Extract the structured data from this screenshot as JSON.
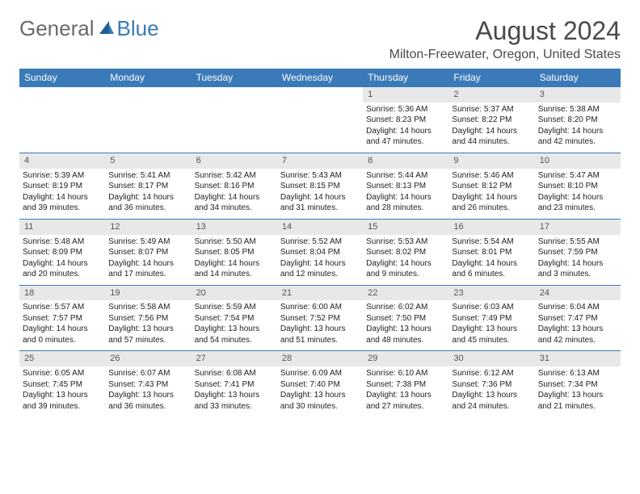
{
  "logo": {
    "text1": "General",
    "text2": "Blue"
  },
  "title": "August 2024",
  "location": "Milton-Freewater, Oregon, United States",
  "colors": {
    "header_bg": "#3a7ab8",
    "header_text": "#ffffff",
    "daynum_bg": "#e8e8e8",
    "border": "#3a7ab8"
  },
  "weekdays": [
    "Sunday",
    "Monday",
    "Tuesday",
    "Wednesday",
    "Thursday",
    "Friday",
    "Saturday"
  ],
  "weeks": [
    [
      {
        "n": "",
        "sunrise": "",
        "sunset": "",
        "daylight": ""
      },
      {
        "n": "",
        "sunrise": "",
        "sunset": "",
        "daylight": ""
      },
      {
        "n": "",
        "sunrise": "",
        "sunset": "",
        "daylight": ""
      },
      {
        "n": "",
        "sunrise": "",
        "sunset": "",
        "daylight": ""
      },
      {
        "n": "1",
        "sunrise": "Sunrise: 5:36 AM",
        "sunset": "Sunset: 8:23 PM",
        "daylight": "Daylight: 14 hours and 47 minutes."
      },
      {
        "n": "2",
        "sunrise": "Sunrise: 5:37 AM",
        "sunset": "Sunset: 8:22 PM",
        "daylight": "Daylight: 14 hours and 44 minutes."
      },
      {
        "n": "3",
        "sunrise": "Sunrise: 5:38 AM",
        "sunset": "Sunset: 8:20 PM",
        "daylight": "Daylight: 14 hours and 42 minutes."
      }
    ],
    [
      {
        "n": "4",
        "sunrise": "Sunrise: 5:39 AM",
        "sunset": "Sunset: 8:19 PM",
        "daylight": "Daylight: 14 hours and 39 minutes."
      },
      {
        "n": "5",
        "sunrise": "Sunrise: 5:41 AM",
        "sunset": "Sunset: 8:17 PM",
        "daylight": "Daylight: 14 hours and 36 minutes."
      },
      {
        "n": "6",
        "sunrise": "Sunrise: 5:42 AM",
        "sunset": "Sunset: 8:16 PM",
        "daylight": "Daylight: 14 hours and 34 minutes."
      },
      {
        "n": "7",
        "sunrise": "Sunrise: 5:43 AM",
        "sunset": "Sunset: 8:15 PM",
        "daylight": "Daylight: 14 hours and 31 minutes."
      },
      {
        "n": "8",
        "sunrise": "Sunrise: 5:44 AM",
        "sunset": "Sunset: 8:13 PM",
        "daylight": "Daylight: 14 hours and 28 minutes."
      },
      {
        "n": "9",
        "sunrise": "Sunrise: 5:46 AM",
        "sunset": "Sunset: 8:12 PM",
        "daylight": "Daylight: 14 hours and 26 minutes."
      },
      {
        "n": "10",
        "sunrise": "Sunrise: 5:47 AM",
        "sunset": "Sunset: 8:10 PM",
        "daylight": "Daylight: 14 hours and 23 minutes."
      }
    ],
    [
      {
        "n": "11",
        "sunrise": "Sunrise: 5:48 AM",
        "sunset": "Sunset: 8:09 PM",
        "daylight": "Daylight: 14 hours and 20 minutes."
      },
      {
        "n": "12",
        "sunrise": "Sunrise: 5:49 AM",
        "sunset": "Sunset: 8:07 PM",
        "daylight": "Daylight: 14 hours and 17 minutes."
      },
      {
        "n": "13",
        "sunrise": "Sunrise: 5:50 AM",
        "sunset": "Sunset: 8:05 PM",
        "daylight": "Daylight: 14 hours and 14 minutes."
      },
      {
        "n": "14",
        "sunrise": "Sunrise: 5:52 AM",
        "sunset": "Sunset: 8:04 PM",
        "daylight": "Daylight: 14 hours and 12 minutes."
      },
      {
        "n": "15",
        "sunrise": "Sunrise: 5:53 AM",
        "sunset": "Sunset: 8:02 PM",
        "daylight": "Daylight: 14 hours and 9 minutes."
      },
      {
        "n": "16",
        "sunrise": "Sunrise: 5:54 AM",
        "sunset": "Sunset: 8:01 PM",
        "daylight": "Daylight: 14 hours and 6 minutes."
      },
      {
        "n": "17",
        "sunrise": "Sunrise: 5:55 AM",
        "sunset": "Sunset: 7:59 PM",
        "daylight": "Daylight: 14 hours and 3 minutes."
      }
    ],
    [
      {
        "n": "18",
        "sunrise": "Sunrise: 5:57 AM",
        "sunset": "Sunset: 7:57 PM",
        "daylight": "Daylight: 14 hours and 0 minutes."
      },
      {
        "n": "19",
        "sunrise": "Sunrise: 5:58 AM",
        "sunset": "Sunset: 7:56 PM",
        "daylight": "Daylight: 13 hours and 57 minutes."
      },
      {
        "n": "20",
        "sunrise": "Sunrise: 5:59 AM",
        "sunset": "Sunset: 7:54 PM",
        "daylight": "Daylight: 13 hours and 54 minutes."
      },
      {
        "n": "21",
        "sunrise": "Sunrise: 6:00 AM",
        "sunset": "Sunset: 7:52 PM",
        "daylight": "Daylight: 13 hours and 51 minutes."
      },
      {
        "n": "22",
        "sunrise": "Sunrise: 6:02 AM",
        "sunset": "Sunset: 7:50 PM",
        "daylight": "Daylight: 13 hours and 48 minutes."
      },
      {
        "n": "23",
        "sunrise": "Sunrise: 6:03 AM",
        "sunset": "Sunset: 7:49 PM",
        "daylight": "Daylight: 13 hours and 45 minutes."
      },
      {
        "n": "24",
        "sunrise": "Sunrise: 6:04 AM",
        "sunset": "Sunset: 7:47 PM",
        "daylight": "Daylight: 13 hours and 42 minutes."
      }
    ],
    [
      {
        "n": "25",
        "sunrise": "Sunrise: 6:05 AM",
        "sunset": "Sunset: 7:45 PM",
        "daylight": "Daylight: 13 hours and 39 minutes."
      },
      {
        "n": "26",
        "sunrise": "Sunrise: 6:07 AM",
        "sunset": "Sunset: 7:43 PM",
        "daylight": "Daylight: 13 hours and 36 minutes."
      },
      {
        "n": "27",
        "sunrise": "Sunrise: 6:08 AM",
        "sunset": "Sunset: 7:41 PM",
        "daylight": "Daylight: 13 hours and 33 minutes."
      },
      {
        "n": "28",
        "sunrise": "Sunrise: 6:09 AM",
        "sunset": "Sunset: 7:40 PM",
        "daylight": "Daylight: 13 hours and 30 minutes."
      },
      {
        "n": "29",
        "sunrise": "Sunrise: 6:10 AM",
        "sunset": "Sunset: 7:38 PM",
        "daylight": "Daylight: 13 hours and 27 minutes."
      },
      {
        "n": "30",
        "sunrise": "Sunrise: 6:12 AM",
        "sunset": "Sunset: 7:36 PM",
        "daylight": "Daylight: 13 hours and 24 minutes."
      },
      {
        "n": "31",
        "sunrise": "Sunrise: 6:13 AM",
        "sunset": "Sunset: 7:34 PM",
        "daylight": "Daylight: 13 hours and 21 minutes."
      }
    ]
  ]
}
